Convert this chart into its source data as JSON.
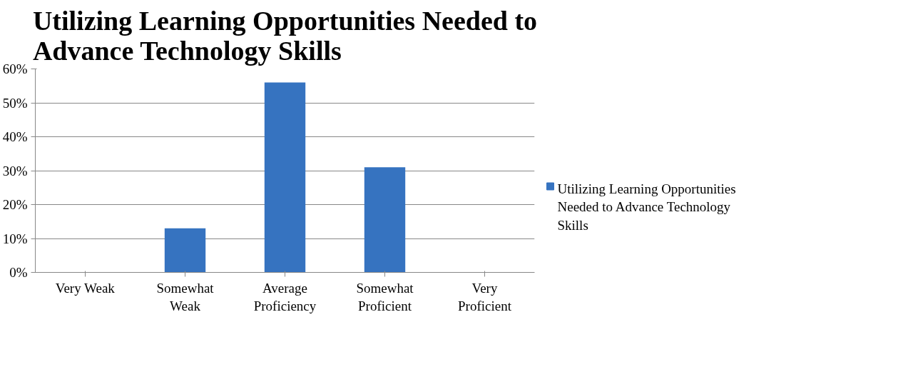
{
  "chart_data": {
    "type": "bar",
    "title": "Utilizing Learning Opportunities Needed to Advance Technology Skills",
    "categories": [
      "Very Weak",
      "Somewhat Weak",
      "Average Proficiency",
      "Somewhat Proficient",
      "Very Proficient"
    ],
    "series": [
      {
        "name": "Utilizing Learning Opportunities Needed to Advance Technology Skills",
        "color": "#3673c0",
        "values": [
          0,
          13,
          56,
          31,
          0
        ]
      }
    ],
    "ylim": [
      0,
      60
    ],
    "yticks": [
      {
        "value": 0,
        "label": "0%"
      },
      {
        "value": 10,
        "label": "10%"
      },
      {
        "value": 20,
        "label": "20%"
      },
      {
        "value": 30,
        "label": "30%"
      },
      {
        "value": 40,
        "label": "40%"
      },
      {
        "value": 50,
        "label": "50%"
      },
      {
        "value": 60,
        "label": "60%"
      }
    ],
    "grid": "y",
    "legend": "right"
  }
}
